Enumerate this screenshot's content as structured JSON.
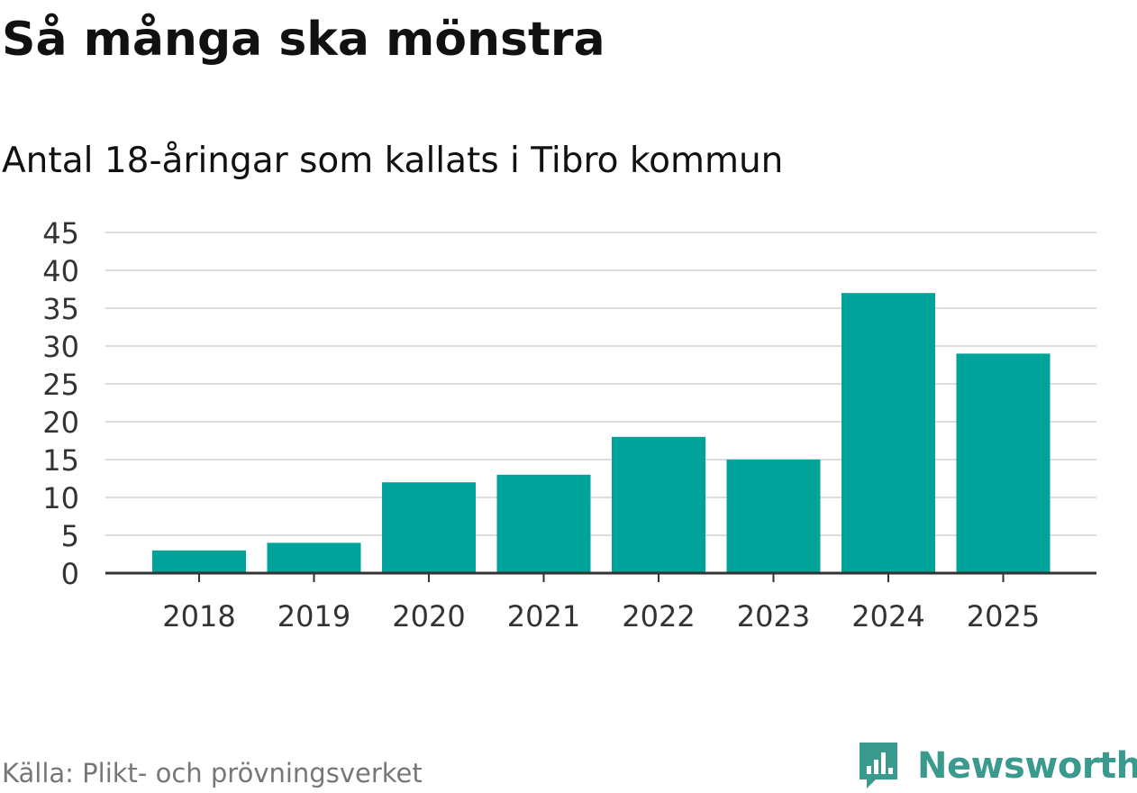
{
  "chart_data": {
    "type": "bar",
    "title": "Så många ska mönstra",
    "subtitle": "Antal 18-åringar som kallats i Tibro kommun",
    "categories": [
      "2018",
      "2019",
      "2020",
      "2021",
      "2022",
      "2023",
      "2024",
      "2025"
    ],
    "values": [
      3,
      4,
      12,
      13,
      18,
      15,
      37,
      29
    ],
    "ylim": [
      0,
      45
    ],
    "yticks": [
      "0",
      "5",
      "10",
      "15",
      "20",
      "25",
      "30",
      "35",
      "40",
      "45"
    ],
    "grid": true,
    "legend": "none",
    "bar_color": "#00a39a"
  },
  "footer": {
    "source": "Källa: Plikt- och prövningsverket",
    "brand": "Newsworthy",
    "brand_icon": "newsworthy-logo-icon",
    "brand_color": "#3a9a8e"
  }
}
